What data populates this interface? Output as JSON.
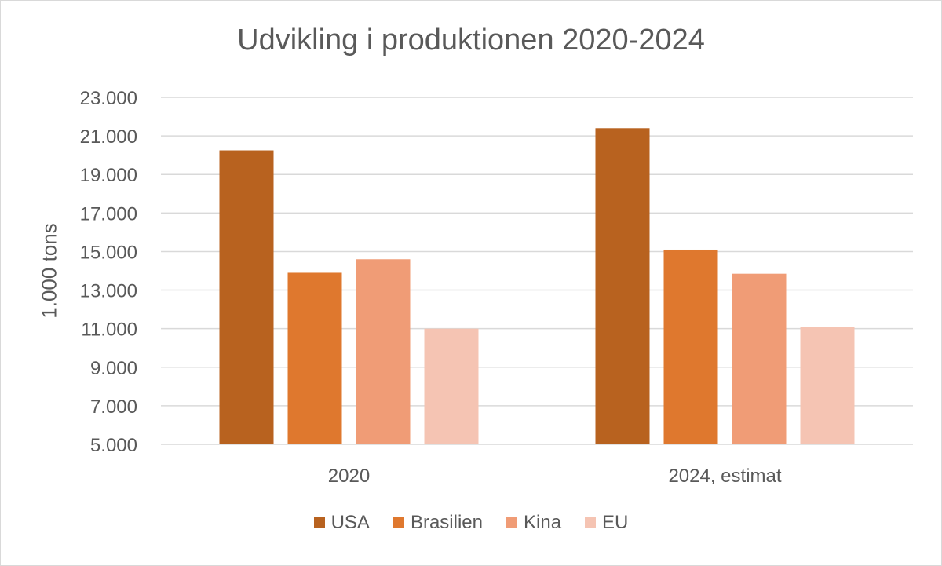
{
  "chart_data": {
    "type": "bar",
    "title": "Udvikling i produktionen 2020-2024",
    "ylabel": "1.000 tons",
    "xlabel": "",
    "categories": [
      "2020",
      "2024, estimat"
    ],
    "series": [
      {
        "name": "USA",
        "color": "#B8621F",
        "values": [
          20250,
          21400
        ]
      },
      {
        "name": "Brasilien",
        "color": "#DF782E",
        "values": [
          13900,
          15100
        ]
      },
      {
        "name": "Kina",
        "color": "#F09C76",
        "values": [
          14600,
          13850
        ]
      },
      {
        "name": "EU",
        "color": "#F5C4B3",
        "values": [
          11000,
          11100
        ]
      }
    ],
    "ylim": [
      5000,
      23000
    ],
    "yticks": [
      5000,
      7000,
      9000,
      11000,
      13000,
      15000,
      17000,
      19000,
      21000,
      23000
    ],
    "ytick_labels": [
      "5.000",
      "7.000",
      "9.000",
      "11.000",
      "13.000",
      "15.000",
      "17.000",
      "19.000",
      "21.000",
      "23.000"
    ],
    "grid": true,
    "legend": "bottom"
  }
}
